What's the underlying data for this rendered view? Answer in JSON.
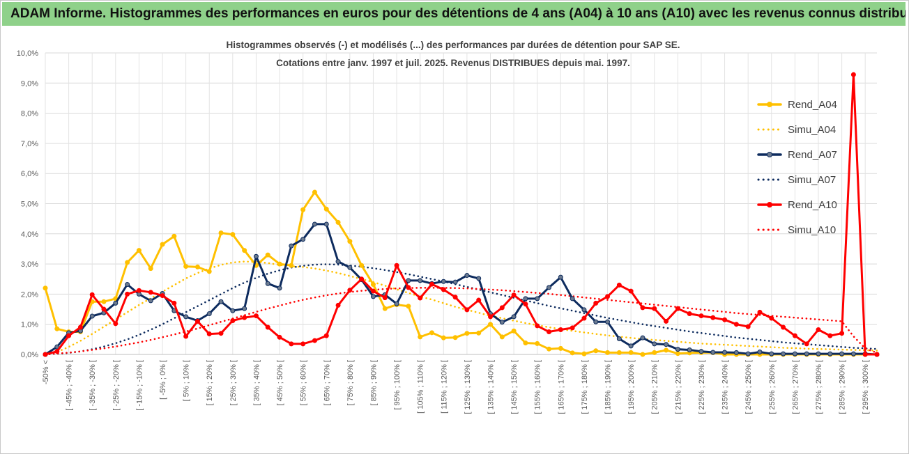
{
  "header": {
    "title": "ADAM Informe. Histogrammes des performances en euros pour des détentions de 4 ans (A04) à 10 ans (A10) avec les revenus connus distribués"
  },
  "chart_data": {
    "type": "line",
    "title_line1": "Histogrammes observés (-) et modélisés (...) des performances par durées de détention pour SAP SE.",
    "title_line2": "Cotations entre janv. 1997 et juil. 2025. Revenus DISTRIBUES depuis mai. 1997.",
    "ylim": [
      0,
      10
    ],
    "y_ticks": [
      "0,0%",
      "1,0%",
      "2,0%",
      "3,0%",
      "4,0%",
      "5,0%",
      "6,0%",
      "7,0%",
      "8,0%",
      "9,0%",
      "10,0%"
    ],
    "grid": true,
    "legend_position": "right",
    "categories": [
      "-50% <",
      "[ -50% ; -45% [",
      "[ -45% ; -40% [",
      "[ -40% ; -35% [",
      "[ -35% ; -30% [",
      "[ -30% ; -25% [",
      "[ -25% ; -20% [",
      "[ -20% ; -15% [",
      "[ -15% ; -10% [",
      "[ -10% ; -5% [",
      "[ -5% ; 0% [",
      "[ 0% ; 5% [",
      "[ 5% ; 10% [",
      "[ 10% ; 15% [",
      "[ 15% ; 20% [",
      "[ 20% ; 25% [",
      "[ 25% ; 30% [",
      "[ 30% ; 35% [",
      "[ 35% ; 40% [",
      "[ 40% ; 45% [",
      "[ 45% ; 50% [",
      "[ 50% ; 55% [",
      "[ 55% ; 60% [",
      "[ 60% ; 65% [",
      "[ 65% ; 70% [",
      "[ 70% ; 75% [",
      "[ 75% ; 80% [",
      "[ 80% ; 85% [",
      "[ 85% ; 90% [",
      "[ 90% ; 95% [",
      "[ 95% ; 100% [",
      "[ 100% ; 105% [",
      "[ 105% ; 110% [",
      "[ 110% ; 115% [",
      "[ 115% ; 120% [",
      "[ 120% ; 125% [",
      "[ 125% ; 130% [",
      "[ 130% ; 135% [",
      "[ 135% ; 140% [",
      "[ 140% ; 145% [",
      "[ 145% ; 150% [",
      "[ 150% ; 155% [",
      "[ 155% ; 160% [",
      "[ 160% ; 165% [",
      "[ 165% ; 170% [",
      "[ 170% ; 175% [",
      "[ 175% ; 180% [",
      "[ 180% ; 185% [",
      "[ 185% ; 190% [",
      "[ 190% ; 195% [",
      "[ 195% ; 200% [",
      "[ 200% ; 205% [",
      "[ 205% ; 210% [",
      "[ 210% ; 215% [",
      "[ 215% ; 220% [",
      "[ 220% ; 225% [",
      "[ 225% ; 230% [",
      "[ 230% ; 235% [",
      "[ 235% ; 240% [",
      "[ 240% ; 245% [",
      "[ 245% ; 250% [",
      "[ 250% ; 255% [",
      "[ 255% ; 260% [",
      "[ 260% ; 265% [",
      "[ 265% ; 270% [",
      "[ 270% ; 275% [",
      "[ 275% ; 280% [",
      "[ 280% ; 285% [",
      "[ 285% ; 290% [",
      "[ 290% ; 295% [",
      "[ 295% ; 300% [",
      "300% >"
    ],
    "series": [
      {
        "name": "Rend_A04",
        "color": "#ffc000",
        "style": "solid",
        "markers": true,
        "values": [
          2.2,
          0.85,
          0.75,
          0.75,
          1.75,
          1.75,
          1.85,
          3.05,
          3.45,
          2.85,
          3.65,
          3.92,
          2.92,
          2.9,
          2.75,
          4.03,
          3.98,
          3.45,
          2.95,
          3.3,
          3.0,
          2.95,
          4.8,
          5.38,
          4.82,
          4.38,
          3.75,
          2.95,
          2.32,
          1.52,
          1.65,
          1.6,
          0.58,
          0.72,
          0.55,
          0.56,
          0.7,
          0.71,
          1.0,
          0.58,
          0.78,
          0.38,
          0.36,
          0.18,
          0.2,
          0.05,
          0.02,
          0.12,
          0.06,
          0.06,
          0.06,
          0.0,
          0.06,
          0.14,
          0.03,
          0.05,
          0.06,
          0.06,
          0.0,
          0.0,
          0.0,
          0.0,
          0.0,
          0.0,
          0.0,
          0.0,
          0.0,
          0.0,
          0.0,
          0.0,
          0.0,
          0.0
        ]
      },
      {
        "name": "Simu_A04",
        "color": "#ffc000",
        "style": "dotted",
        "markers": false,
        "values": [
          0.0,
          0.08,
          0.25,
          0.45,
          0.68,
          0.92,
          1.16,
          1.4,
          1.64,
          1.86,
          2.08,
          2.3,
          2.52,
          2.7,
          2.85,
          2.97,
          3.05,
          3.08,
          3.07,
          3.03,
          2.97,
          2.92,
          2.9,
          2.85,
          2.78,
          2.7,
          2.6,
          2.5,
          2.4,
          2.28,
          2.16,
          2.04,
          1.92,
          1.82,
          1.7,
          1.58,
          1.48,
          1.38,
          1.28,
          1.2,
          1.12,
          1.04,
          0.97,
          0.9,
          0.84,
          0.78,
          0.73,
          0.68,
          0.63,
          0.59,
          0.55,
          0.51,
          0.48,
          0.45,
          0.42,
          0.39,
          0.36,
          0.34,
          0.32,
          0.3,
          0.28,
          0.26,
          0.24,
          0.22,
          0.21,
          0.19,
          0.18,
          0.17,
          0.16,
          0.15,
          0.14,
          0.13
        ]
      },
      {
        "name": "Rend_A07",
        "color": "#0d2b5e",
        "style": "solid",
        "markers": true,
        "values": [
          0.0,
          0.25,
          0.72,
          0.78,
          1.27,
          1.38,
          1.7,
          2.32,
          2.0,
          1.78,
          2.02,
          1.45,
          1.25,
          1.12,
          1.35,
          1.75,
          1.45,
          1.52,
          3.25,
          2.35,
          2.2,
          3.6,
          3.82,
          4.32,
          4.32,
          3.08,
          2.88,
          2.48,
          1.92,
          1.98,
          1.68,
          2.45,
          2.45,
          2.35,
          2.42,
          2.4,
          2.62,
          2.52,
          1.35,
          1.07,
          1.25,
          1.85,
          1.85,
          2.22,
          2.56,
          1.85,
          1.48,
          1.08,
          1.08,
          0.52,
          0.28,
          0.55,
          0.35,
          0.33,
          0.17,
          0.15,
          0.1,
          0.07,
          0.07,
          0.06,
          0.02,
          0.08,
          0.02,
          0.02,
          0.02,
          0.02,
          0.02,
          0.02,
          0.02,
          0.02,
          0.02,
          0.0
        ]
      },
      {
        "name": "Simu_A07",
        "color": "#0d2b5e",
        "style": "dotted",
        "markers": false,
        "values": [
          0.0,
          0.02,
          0.05,
          0.1,
          0.17,
          0.26,
          0.37,
          0.5,
          0.65,
          0.82,
          1.0,
          1.2,
          1.4,
          1.6,
          1.8,
          2.0,
          2.2,
          2.38,
          2.54,
          2.68,
          2.79,
          2.88,
          2.94,
          2.98,
          2.99,
          2.98,
          2.95,
          2.91,
          2.86,
          2.8,
          2.73,
          2.66,
          2.58,
          2.5,
          2.42,
          2.33,
          2.24,
          2.15,
          2.06,
          1.97,
          1.88,
          1.79,
          1.7,
          1.61,
          1.53,
          1.45,
          1.37,
          1.29,
          1.21,
          1.14,
          1.07,
          1.0,
          0.94,
          0.88,
          0.82,
          0.76,
          0.71,
          0.66,
          0.61,
          0.56,
          0.52,
          0.48,
          0.44,
          0.4,
          0.37,
          0.34,
          0.31,
          0.28,
          0.25,
          0.22,
          0.2,
          0.18
        ]
      },
      {
        "name": "Rend_A10",
        "color": "#ff0000",
        "style": "solid",
        "markers": true,
        "values": [
          0.0,
          0.1,
          0.62,
          0.9,
          1.98,
          1.5,
          1.02,
          2.0,
          2.12,
          2.06,
          1.95,
          1.7,
          0.6,
          1.1,
          0.68,
          0.7,
          1.12,
          1.22,
          1.28,
          0.9,
          0.57,
          0.35,
          0.35,
          0.46,
          0.62,
          1.63,
          2.13,
          2.5,
          2.1,
          1.88,
          2.95,
          2.22,
          1.87,
          2.33,
          2.15,
          1.9,
          1.48,
          1.8,
          1.25,
          1.55,
          1.97,
          1.67,
          0.95,
          0.75,
          0.82,
          0.88,
          1.2,
          1.7,
          1.92,
          2.3,
          2.1,
          1.55,
          1.52,
          1.1,
          1.52,
          1.35,
          1.28,
          1.22,
          1.15,
          1.0,
          0.92,
          1.4,
          1.2,
          0.9,
          0.62,
          0.35,
          0.82,
          0.62,
          0.7,
          9.28,
          0.0,
          0.0
        ]
      },
      {
        "name": "Simu_A10",
        "color": "#ff0000",
        "style": "dotted",
        "markers": false,
        "values": [
          0.0,
          0.03,
          0.06,
          0.1,
          0.15,
          0.2,
          0.26,
          0.33,
          0.4,
          0.48,
          0.57,
          0.66,
          0.76,
          0.86,
          0.97,
          1.08,
          1.19,
          1.3,
          1.41,
          1.52,
          1.62,
          1.72,
          1.81,
          1.89,
          1.96,
          2.02,
          2.07,
          2.11,
          2.14,
          2.17,
          2.19,
          2.2,
          2.21,
          2.21,
          2.21,
          2.2,
          2.19,
          2.17,
          2.15,
          2.13,
          2.1,
          2.07,
          2.04,
          2.01,
          1.97,
          1.93,
          1.89,
          1.85,
          1.81,
          1.77,
          1.73,
          1.69,
          1.65,
          1.61,
          1.57,
          1.53,
          1.49,
          1.45,
          1.41,
          1.37,
          1.34,
          1.31,
          1.28,
          1.25,
          1.22,
          1.19,
          1.16,
          1.13,
          1.1,
          0.6,
          0.2,
          0.05
        ]
      }
    ]
  }
}
